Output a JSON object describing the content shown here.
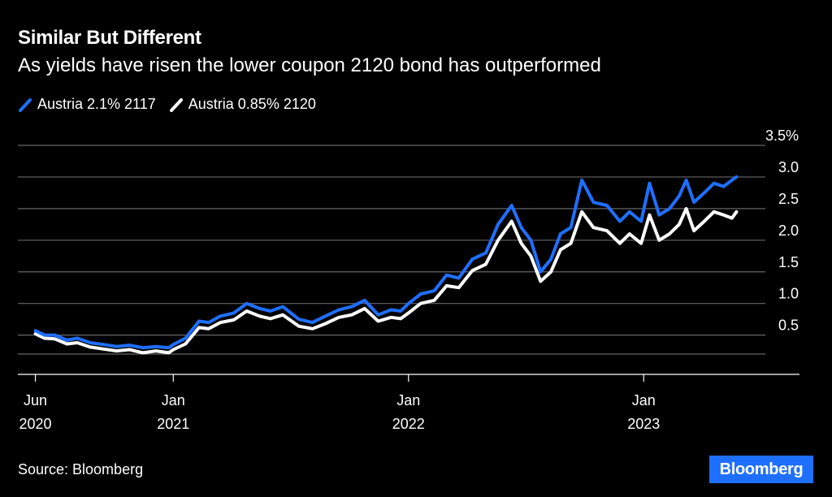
{
  "header": {
    "title": "Similar But Different",
    "subtitle": "As yields have risen the lower coupon 2120 bond has outperformed"
  },
  "legend": {
    "items": [
      {
        "label": "Austria 2.1% 2117",
        "color": "#1f6fff"
      },
      {
        "label": "Austria 0.85% 2120",
        "color": "#ffffff"
      }
    ]
  },
  "footer": {
    "source": "Source: Bloomberg",
    "logo_text": "Bloomberg"
  },
  "chart_data": {
    "type": "line",
    "title": "Similar But Different",
    "subtitle": "As yields have risen the lower coupon 2120 bond has outperformed",
    "xlabel": "",
    "ylabel": "",
    "ylim": [
      0.2,
      3.5
    ],
    "y_ticks": [
      "3.5%",
      "3.0",
      "2.5",
      "2.0",
      "1.5",
      "1.0",
      "0.5"
    ],
    "y_tick_values": [
      3.5,
      3.0,
      2.5,
      2.0,
      1.5,
      1.0,
      0.5
    ],
    "x_ticks": [
      {
        "date": "2020-06-01",
        "line1": "Jun",
        "line2": "2020"
      },
      {
        "date": "2021-01-01",
        "line1": "Jan",
        "line2": "2021"
      },
      {
        "date": "2022-01-01",
        "line1": "Jan",
        "line2": "2022"
      },
      {
        "date": "2023-01-01",
        "line1": "Jan",
        "line2": "2023"
      }
    ],
    "xlim": [
      "2020-05-25",
      "2023-06-01"
    ],
    "y_axis_position": "right",
    "grid": true,
    "legend_position": "top-left",
    "series": [
      {
        "name": "Austria 2.1% 2117",
        "color": "#1f6fff",
        "x": [
          "2020-06-01",
          "2020-06-15",
          "2020-07-01",
          "2020-07-20",
          "2020-08-05",
          "2020-08-25",
          "2020-09-15",
          "2020-10-05",
          "2020-10-25",
          "2020-11-15",
          "2020-12-05",
          "2020-12-25",
          "2021-01-01",
          "2021-01-20",
          "2021-02-10",
          "2021-02-25",
          "2021-03-15",
          "2021-04-05",
          "2021-04-25",
          "2021-05-15",
          "2021-06-01",
          "2021-06-20",
          "2021-07-15",
          "2021-08-05",
          "2021-08-25",
          "2021-09-15",
          "2021-10-05",
          "2021-10-25",
          "2021-11-15",
          "2021-12-05",
          "2021-12-20",
          "2022-01-01",
          "2022-01-20",
          "2022-02-10",
          "2022-03-01",
          "2022-03-20",
          "2022-04-10",
          "2022-05-01",
          "2022-05-20",
          "2022-06-10",
          "2022-06-25",
          "2022-07-10",
          "2022-07-25",
          "2022-08-10",
          "2022-08-25",
          "2022-09-10",
          "2022-09-27",
          "2022-10-15",
          "2022-11-05",
          "2022-11-25",
          "2022-12-10",
          "2022-12-28",
          "2023-01-10",
          "2023-01-25",
          "2023-02-10",
          "2023-02-25",
          "2023-03-08",
          "2023-03-20",
          "2023-04-05",
          "2023-04-20",
          "2023-05-05",
          "2023-05-18",
          "2023-05-25"
        ],
        "values": [
          0.57,
          0.5,
          0.5,
          0.42,
          0.45,
          0.38,
          0.35,
          0.32,
          0.34,
          0.3,
          0.32,
          0.3,
          0.35,
          0.45,
          0.72,
          0.7,
          0.8,
          0.85,
          1.0,
          0.92,
          0.88,
          0.95,
          0.75,
          0.7,
          0.8,
          0.9,
          0.95,
          1.05,
          0.82,
          0.9,
          0.88,
          1.0,
          1.15,
          1.2,
          1.45,
          1.4,
          1.7,
          1.8,
          2.25,
          2.55,
          2.2,
          2.0,
          1.5,
          1.7,
          2.1,
          2.2,
          2.95,
          2.6,
          2.55,
          2.3,
          2.45,
          2.3,
          2.9,
          2.4,
          2.5,
          2.7,
          2.95,
          2.6,
          2.75,
          2.9,
          2.85,
          2.95,
          3.0
        ]
      },
      {
        "name": "Austria 0.85% 2120",
        "color": "#ffffff",
        "x": [
          "2020-06-01",
          "2020-06-15",
          "2020-07-01",
          "2020-07-20",
          "2020-08-05",
          "2020-08-25",
          "2020-09-15",
          "2020-10-05",
          "2020-10-25",
          "2020-11-15",
          "2020-12-05",
          "2020-12-25",
          "2021-01-01",
          "2021-01-20",
          "2021-02-10",
          "2021-02-25",
          "2021-03-15",
          "2021-04-05",
          "2021-04-25",
          "2021-05-15",
          "2021-06-01",
          "2021-06-20",
          "2021-07-15",
          "2021-08-05",
          "2021-08-25",
          "2021-09-15",
          "2021-10-05",
          "2021-10-25",
          "2021-11-15",
          "2021-12-05",
          "2021-12-20",
          "2022-01-01",
          "2022-01-20",
          "2022-02-10",
          "2022-03-01",
          "2022-03-20",
          "2022-04-10",
          "2022-05-01",
          "2022-05-20",
          "2022-06-10",
          "2022-06-25",
          "2022-07-10",
          "2022-07-25",
          "2022-08-10",
          "2022-08-25",
          "2022-09-10",
          "2022-09-27",
          "2022-10-15",
          "2022-11-05",
          "2022-11-25",
          "2022-12-10",
          "2022-12-28",
          "2023-01-10",
          "2023-01-25",
          "2023-02-10",
          "2023-02-25",
          "2023-03-08",
          "2023-03-20",
          "2023-04-05",
          "2023-04-20",
          "2023-05-05",
          "2023-05-18",
          "2023-05-25"
        ],
        "values": [
          0.52,
          0.45,
          0.44,
          0.36,
          0.38,
          0.31,
          0.28,
          0.25,
          0.27,
          0.22,
          0.25,
          0.22,
          0.27,
          0.36,
          0.62,
          0.6,
          0.7,
          0.74,
          0.88,
          0.8,
          0.76,
          0.82,
          0.64,
          0.6,
          0.68,
          0.78,
          0.82,
          0.92,
          0.72,
          0.78,
          0.76,
          0.85,
          1.0,
          1.05,
          1.28,
          1.25,
          1.52,
          1.62,
          2.0,
          2.3,
          1.95,
          1.75,
          1.35,
          1.5,
          1.85,
          1.95,
          2.45,
          2.2,
          2.15,
          1.95,
          2.1,
          1.95,
          2.4,
          2.0,
          2.1,
          2.25,
          2.5,
          2.15,
          2.3,
          2.45,
          2.4,
          2.35,
          2.45
        ]
      }
    ]
  }
}
